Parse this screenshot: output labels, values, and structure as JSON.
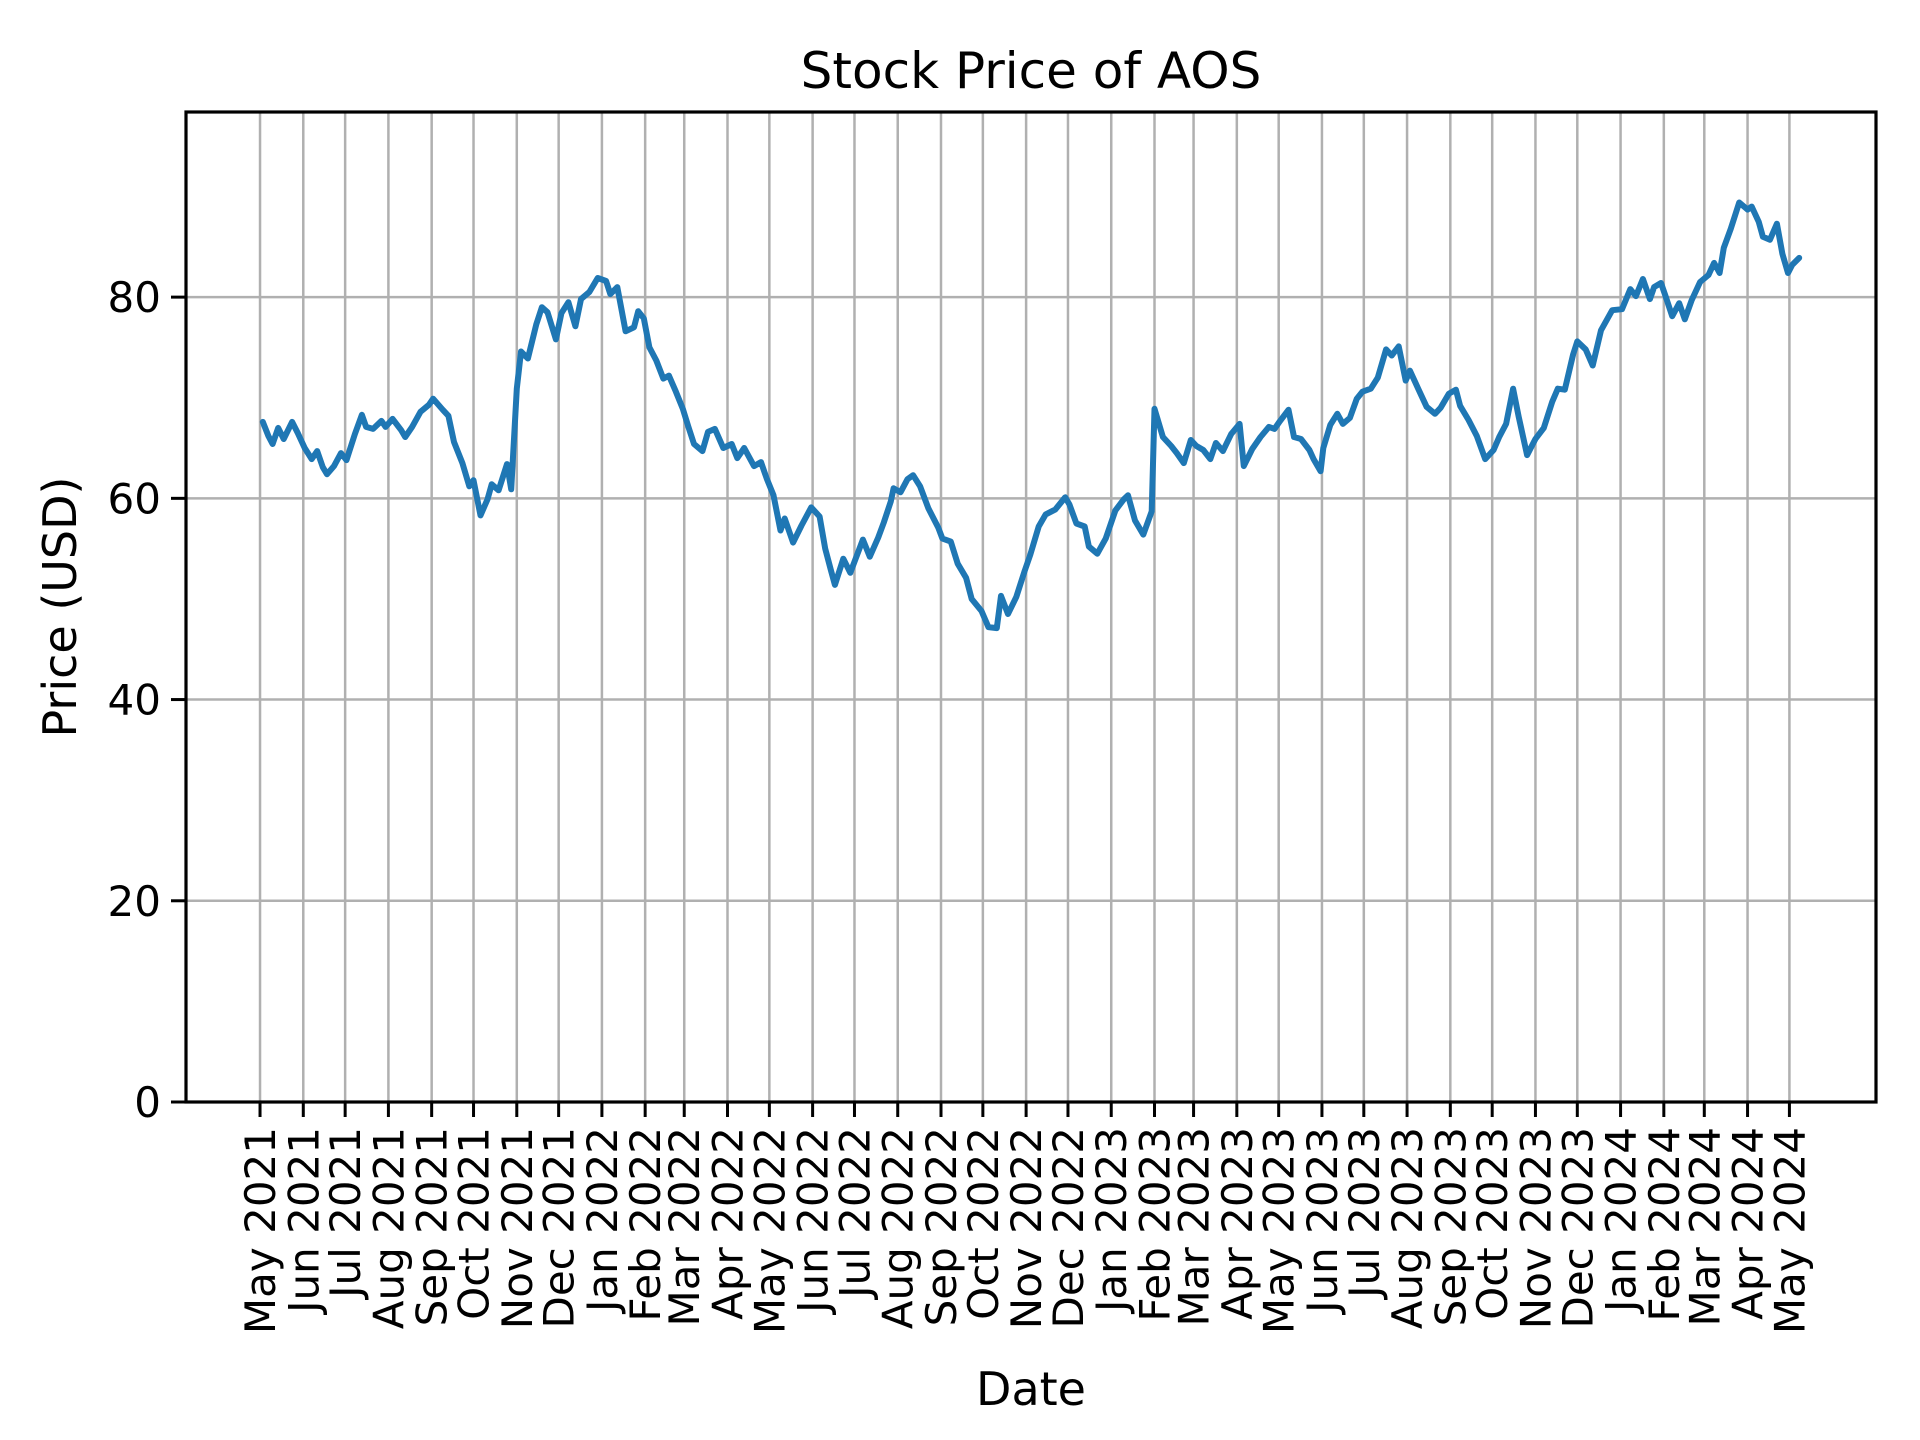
{
  "figure": {
    "title": "Stock Price of AOS",
    "xlabel": "Date",
    "ylabel": "Price (USD)"
  },
  "chart_data": {
    "type": "line",
    "title": "Stock Price of AOS",
    "xlabel": "Date",
    "ylabel": "Price (USD)",
    "grid": true,
    "grid_color": "#b0b0b0",
    "axis_color": "#000000",
    "background": "#ffffff",
    "ylim": [
      0,
      98.4
    ],
    "x_margin_frac": 0.05,
    "y_ticks": [
      {
        "value": 0,
        "label": "0"
      },
      {
        "value": 20,
        "label": "20"
      },
      {
        "value": 40,
        "label": "40"
      },
      {
        "value": 60,
        "label": "60"
      },
      {
        "value": 80,
        "label": "80"
      }
    ],
    "x_ticks": [
      {
        "date": "2021-05-01",
        "label": "May 2021"
      },
      {
        "date": "2021-06-01",
        "label": "Jun 2021"
      },
      {
        "date": "2021-07-01",
        "label": "Jul 2021"
      },
      {
        "date": "2021-08-01",
        "label": "Aug 2021"
      },
      {
        "date": "2021-09-01",
        "label": "Sep 2021"
      },
      {
        "date": "2021-10-01",
        "label": "Oct 2021"
      },
      {
        "date": "2021-11-01",
        "label": "Nov 2021"
      },
      {
        "date": "2021-12-01",
        "label": "Dec 2021"
      },
      {
        "date": "2022-01-01",
        "label": "Jan 2022"
      },
      {
        "date": "2022-02-01",
        "label": "Feb 2022"
      },
      {
        "date": "2022-03-01",
        "label": "Mar 2022"
      },
      {
        "date": "2022-04-01",
        "label": "Apr 2022"
      },
      {
        "date": "2022-05-01",
        "label": "May 2022"
      },
      {
        "date": "2022-06-01",
        "label": "Jun 2022"
      },
      {
        "date": "2022-07-01",
        "label": "Jul 2022"
      },
      {
        "date": "2022-08-01",
        "label": "Aug 2022"
      },
      {
        "date": "2022-09-01",
        "label": "Sep 2022"
      },
      {
        "date": "2022-10-01",
        "label": "Oct 2022"
      },
      {
        "date": "2022-11-01",
        "label": "Nov 2022"
      },
      {
        "date": "2022-12-01",
        "label": "Dec 2022"
      },
      {
        "date": "2023-01-01",
        "label": "Jan 2023"
      },
      {
        "date": "2023-02-01",
        "label": "Feb 2023"
      },
      {
        "date": "2023-03-01",
        "label": "Mar 2023"
      },
      {
        "date": "2023-04-01",
        "label": "Apr 2023"
      },
      {
        "date": "2023-05-01",
        "label": "May 2023"
      },
      {
        "date": "2023-06-01",
        "label": "Jun 2023"
      },
      {
        "date": "2023-07-01",
        "label": "Jul 2023"
      },
      {
        "date": "2023-08-01",
        "label": "Aug 2023"
      },
      {
        "date": "2023-09-01",
        "label": "Sep 2023"
      },
      {
        "date": "2023-10-01",
        "label": "Oct 2023"
      },
      {
        "date": "2023-11-01",
        "label": "Nov 2023"
      },
      {
        "date": "2023-12-01",
        "label": "Dec 2023"
      },
      {
        "date": "2024-01-01",
        "label": "Jan 2024"
      },
      {
        "date": "2024-02-01",
        "label": "Feb 2024"
      },
      {
        "date": "2024-03-01",
        "label": "Mar 2024"
      },
      {
        "date": "2024-04-01",
        "label": "Apr 2024"
      },
      {
        "date": "2024-05-01",
        "label": "May 2024"
      }
    ],
    "series": [
      {
        "name": "AOS",
        "color": "#1f77b4",
        "line_width": 6,
        "points": [
          [
            "2021-05-03",
            67.6
          ],
          [
            "2021-05-07",
            66.2
          ],
          [
            "2021-05-10",
            65.4
          ],
          [
            "2021-05-14",
            67.0
          ],
          [
            "2021-05-18",
            65.9
          ],
          [
            "2021-05-24",
            67.6
          ],
          [
            "2021-05-28",
            66.5
          ],
          [
            "2021-06-02",
            65.0
          ],
          [
            "2021-06-07",
            63.9
          ],
          [
            "2021-06-11",
            64.7
          ],
          [
            "2021-06-15",
            63.1
          ],
          [
            "2021-06-18",
            62.4
          ],
          [
            "2021-06-23",
            63.2
          ],
          [
            "2021-06-28",
            64.5
          ],
          [
            "2021-07-02",
            63.8
          ],
          [
            "2021-07-08",
            66.4
          ],
          [
            "2021-07-13",
            68.3
          ],
          [
            "2021-07-16",
            67.1
          ],
          [
            "2021-07-21",
            66.9
          ],
          [
            "2021-07-27",
            67.7
          ],
          [
            "2021-07-30",
            67.1
          ],
          [
            "2021-08-04",
            67.9
          ],
          [
            "2021-08-10",
            66.8
          ],
          [
            "2021-08-13",
            66.1
          ],
          [
            "2021-08-18",
            67.1
          ],
          [
            "2021-08-24",
            68.6
          ],
          [
            "2021-08-30",
            69.3
          ],
          [
            "2021-09-02",
            69.9
          ],
          [
            "2021-09-09",
            68.8
          ],
          [
            "2021-09-13",
            68.2
          ],
          [
            "2021-09-17",
            65.6
          ],
          [
            "2021-09-23",
            63.5
          ],
          [
            "2021-09-28",
            61.2
          ],
          [
            "2021-10-01",
            61.8
          ],
          [
            "2021-10-06",
            58.3
          ],
          [
            "2021-10-11",
            59.9
          ],
          [
            "2021-10-14",
            61.4
          ],
          [
            "2021-10-19",
            60.8
          ],
          [
            "2021-10-25",
            63.4
          ],
          [
            "2021-10-28",
            60.9
          ],
          [
            "2021-11-01",
            70.9
          ],
          [
            "2021-11-04",
            74.6
          ],
          [
            "2021-11-09",
            73.9
          ],
          [
            "2021-11-15",
            77.3
          ],
          [
            "2021-11-19",
            79.0
          ],
          [
            "2021-11-23",
            78.5
          ],
          [
            "2021-11-29",
            75.8
          ],
          [
            "2021-12-03",
            78.4
          ],
          [
            "2021-12-08",
            79.5
          ],
          [
            "2021-12-13",
            77.1
          ],
          [
            "2021-12-17",
            79.8
          ],
          [
            "2021-12-23",
            80.5
          ],
          [
            "2021-12-29",
            81.9
          ],
          [
            "2022-01-04",
            81.6
          ],
          [
            "2022-01-07",
            80.3
          ],
          [
            "2022-01-12",
            81.0
          ],
          [
            "2022-01-18",
            76.6
          ],
          [
            "2022-01-24",
            77.0
          ],
          [
            "2022-01-27",
            78.6
          ],
          [
            "2022-01-31",
            77.9
          ],
          [
            "2022-02-04",
            75.0
          ],
          [
            "2022-02-09",
            73.7
          ],
          [
            "2022-02-14",
            71.9
          ],
          [
            "2022-02-18",
            72.2
          ],
          [
            "2022-02-23",
            70.6
          ],
          [
            "2022-02-28",
            68.9
          ],
          [
            "2022-03-04",
            67.1
          ],
          [
            "2022-03-08",
            65.4
          ],
          [
            "2022-03-14",
            64.7
          ],
          [
            "2022-03-18",
            66.6
          ],
          [
            "2022-03-23",
            66.9
          ],
          [
            "2022-03-29",
            65.0
          ],
          [
            "2022-04-04",
            65.4
          ],
          [
            "2022-04-08",
            64.0
          ],
          [
            "2022-04-13",
            65.0
          ],
          [
            "2022-04-20",
            63.2
          ],
          [
            "2022-04-25",
            63.6
          ],
          [
            "2022-04-29",
            62.0
          ],
          [
            "2022-05-04",
            60.3
          ],
          [
            "2022-05-09",
            56.8
          ],
          [
            "2022-05-12",
            58.0
          ],
          [
            "2022-05-18",
            55.6
          ],
          [
            "2022-05-24",
            57.3
          ],
          [
            "2022-05-31",
            59.1
          ],
          [
            "2022-06-06",
            58.2
          ],
          [
            "2022-06-10",
            55.0
          ],
          [
            "2022-06-14",
            52.9
          ],
          [
            "2022-06-17",
            51.4
          ],
          [
            "2022-06-23",
            54.0
          ],
          [
            "2022-06-28",
            52.6
          ],
          [
            "2022-07-01",
            53.7
          ],
          [
            "2022-07-07",
            55.9
          ],
          [
            "2022-07-12",
            54.2
          ],
          [
            "2022-07-18",
            56.1
          ],
          [
            "2022-07-22",
            57.6
          ],
          [
            "2022-07-27",
            59.7
          ],
          [
            "2022-07-29",
            61.0
          ],
          [
            "2022-08-03",
            60.6
          ],
          [
            "2022-08-08",
            61.9
          ],
          [
            "2022-08-12",
            62.3
          ],
          [
            "2022-08-17",
            61.2
          ],
          [
            "2022-08-23",
            59.0
          ],
          [
            "2022-08-30",
            57.1
          ],
          [
            "2022-09-02",
            56.0
          ],
          [
            "2022-09-08",
            55.7
          ],
          [
            "2022-09-13",
            53.5
          ],
          [
            "2022-09-19",
            52.1
          ],
          [
            "2022-09-23",
            50.0
          ],
          [
            "2022-09-30",
            48.8
          ],
          [
            "2022-10-05",
            47.2
          ],
          [
            "2022-10-11",
            47.1
          ],
          [
            "2022-10-14",
            50.3
          ],
          [
            "2022-10-19",
            48.5
          ],
          [
            "2022-10-25",
            50.2
          ],
          [
            "2022-10-31",
            52.8
          ],
          [
            "2022-11-04",
            54.4
          ],
          [
            "2022-11-10",
            57.2
          ],
          [
            "2022-11-15",
            58.4
          ],
          [
            "2022-11-22",
            58.9
          ],
          [
            "2022-11-29",
            60.1
          ],
          [
            "2022-12-02",
            59.4
          ],
          [
            "2022-12-07",
            57.5
          ],
          [
            "2022-12-13",
            57.2
          ],
          [
            "2022-12-16",
            55.2
          ],
          [
            "2022-12-22",
            54.5
          ],
          [
            "2022-12-28",
            56.0
          ],
          [
            "2023-01-04",
            58.8
          ],
          [
            "2023-01-10",
            59.9
          ],
          [
            "2023-01-13",
            60.3
          ],
          [
            "2023-01-18",
            57.8
          ],
          [
            "2023-01-24",
            56.4
          ],
          [
            "2023-01-30",
            58.7
          ],
          [
            "2023-02-01",
            68.9
          ],
          [
            "2023-02-07",
            66.1
          ],
          [
            "2023-02-13",
            65.2
          ],
          [
            "2023-02-17",
            64.5
          ],
          [
            "2023-02-22",
            63.5
          ],
          [
            "2023-02-27",
            65.8
          ],
          [
            "2023-03-03",
            65.2
          ],
          [
            "2023-03-08",
            64.8
          ],
          [
            "2023-03-13",
            63.9
          ],
          [
            "2023-03-17",
            65.5
          ],
          [
            "2023-03-22",
            64.7
          ],
          [
            "2023-03-28",
            66.4
          ],
          [
            "2023-04-03",
            67.4
          ],
          [
            "2023-04-06",
            63.2
          ],
          [
            "2023-04-12",
            64.9
          ],
          [
            "2023-04-18",
            66.1
          ],
          [
            "2023-04-24",
            67.1
          ],
          [
            "2023-04-28",
            66.9
          ],
          [
            "2023-05-02",
            67.7
          ],
          [
            "2023-05-08",
            68.8
          ],
          [
            "2023-05-12",
            66.1
          ],
          [
            "2023-05-17",
            65.9
          ],
          [
            "2023-05-23",
            64.8
          ],
          [
            "2023-05-26",
            63.9
          ],
          [
            "2023-05-31",
            62.7
          ],
          [
            "2023-06-02",
            65.0
          ],
          [
            "2023-06-07",
            67.3
          ],
          [
            "2023-06-12",
            68.4
          ],
          [
            "2023-06-16",
            67.4
          ],
          [
            "2023-06-21",
            68.0
          ],
          [
            "2023-06-26",
            69.9
          ],
          [
            "2023-06-30",
            70.6
          ],
          [
            "2023-07-06",
            70.9
          ],
          [
            "2023-07-11",
            72.0
          ],
          [
            "2023-07-17",
            74.8
          ],
          [
            "2023-07-21",
            74.2
          ],
          [
            "2023-07-26",
            75.1
          ],
          [
            "2023-07-31",
            71.7
          ],
          [
            "2023-08-03",
            72.7
          ],
          [
            "2023-08-09",
            70.9
          ],
          [
            "2023-08-15",
            69.1
          ],
          [
            "2023-08-21",
            68.4
          ],
          [
            "2023-08-25",
            69.0
          ],
          [
            "2023-08-31",
            70.4
          ],
          [
            "2023-09-05",
            70.8
          ],
          [
            "2023-09-08",
            69.2
          ],
          [
            "2023-09-14",
            67.8
          ],
          [
            "2023-09-20",
            66.2
          ],
          [
            "2023-09-26",
            63.9
          ],
          [
            "2023-10-02",
            64.8
          ],
          [
            "2023-10-06",
            66.1
          ],
          [
            "2023-10-11",
            67.4
          ],
          [
            "2023-10-16",
            70.9
          ],
          [
            "2023-10-20",
            68.1
          ],
          [
            "2023-10-26",
            64.3
          ],
          [
            "2023-11-01",
            65.9
          ],
          [
            "2023-11-07",
            67.0
          ],
          [
            "2023-11-13",
            69.6
          ],
          [
            "2023-11-17",
            70.9
          ],
          [
            "2023-11-22",
            70.8
          ],
          [
            "2023-11-28",
            74.3
          ],
          [
            "2023-12-01",
            75.6
          ],
          [
            "2023-12-07",
            74.8
          ],
          [
            "2023-12-12",
            73.2
          ],
          [
            "2023-12-18",
            76.7
          ],
          [
            "2023-12-26",
            78.7
          ],
          [
            "2024-01-02",
            78.8
          ],
          [
            "2024-01-08",
            80.8
          ],
          [
            "2024-01-12",
            80.1
          ],
          [
            "2024-01-17",
            81.8
          ],
          [
            "2024-01-22",
            79.8
          ],
          [
            "2024-01-25",
            81.0
          ],
          [
            "2024-01-30",
            81.4
          ],
          [
            "2024-02-02",
            80.2
          ],
          [
            "2024-02-07",
            78.1
          ],
          [
            "2024-02-12",
            79.4
          ],
          [
            "2024-02-16",
            77.8
          ],
          [
            "2024-02-21",
            79.7
          ],
          [
            "2024-02-27",
            81.5
          ],
          [
            "2024-03-04",
            82.2
          ],
          [
            "2024-03-08",
            83.4
          ],
          [
            "2024-03-12",
            82.4
          ],
          [
            "2024-03-15",
            84.9
          ],
          [
            "2024-03-20",
            86.8
          ],
          [
            "2024-03-26",
            89.4
          ],
          [
            "2024-04-01",
            88.7
          ],
          [
            "2024-04-04",
            89.0
          ],
          [
            "2024-04-09",
            87.5
          ],
          [
            "2024-04-12",
            86.0
          ],
          [
            "2024-04-17",
            85.7
          ],
          [
            "2024-04-22",
            87.3
          ],
          [
            "2024-04-26",
            84.3
          ],
          [
            "2024-04-30",
            82.4
          ],
          [
            "2024-05-03",
            83.2
          ],
          [
            "2024-05-08",
            83.9
          ]
        ]
      }
    ]
  }
}
